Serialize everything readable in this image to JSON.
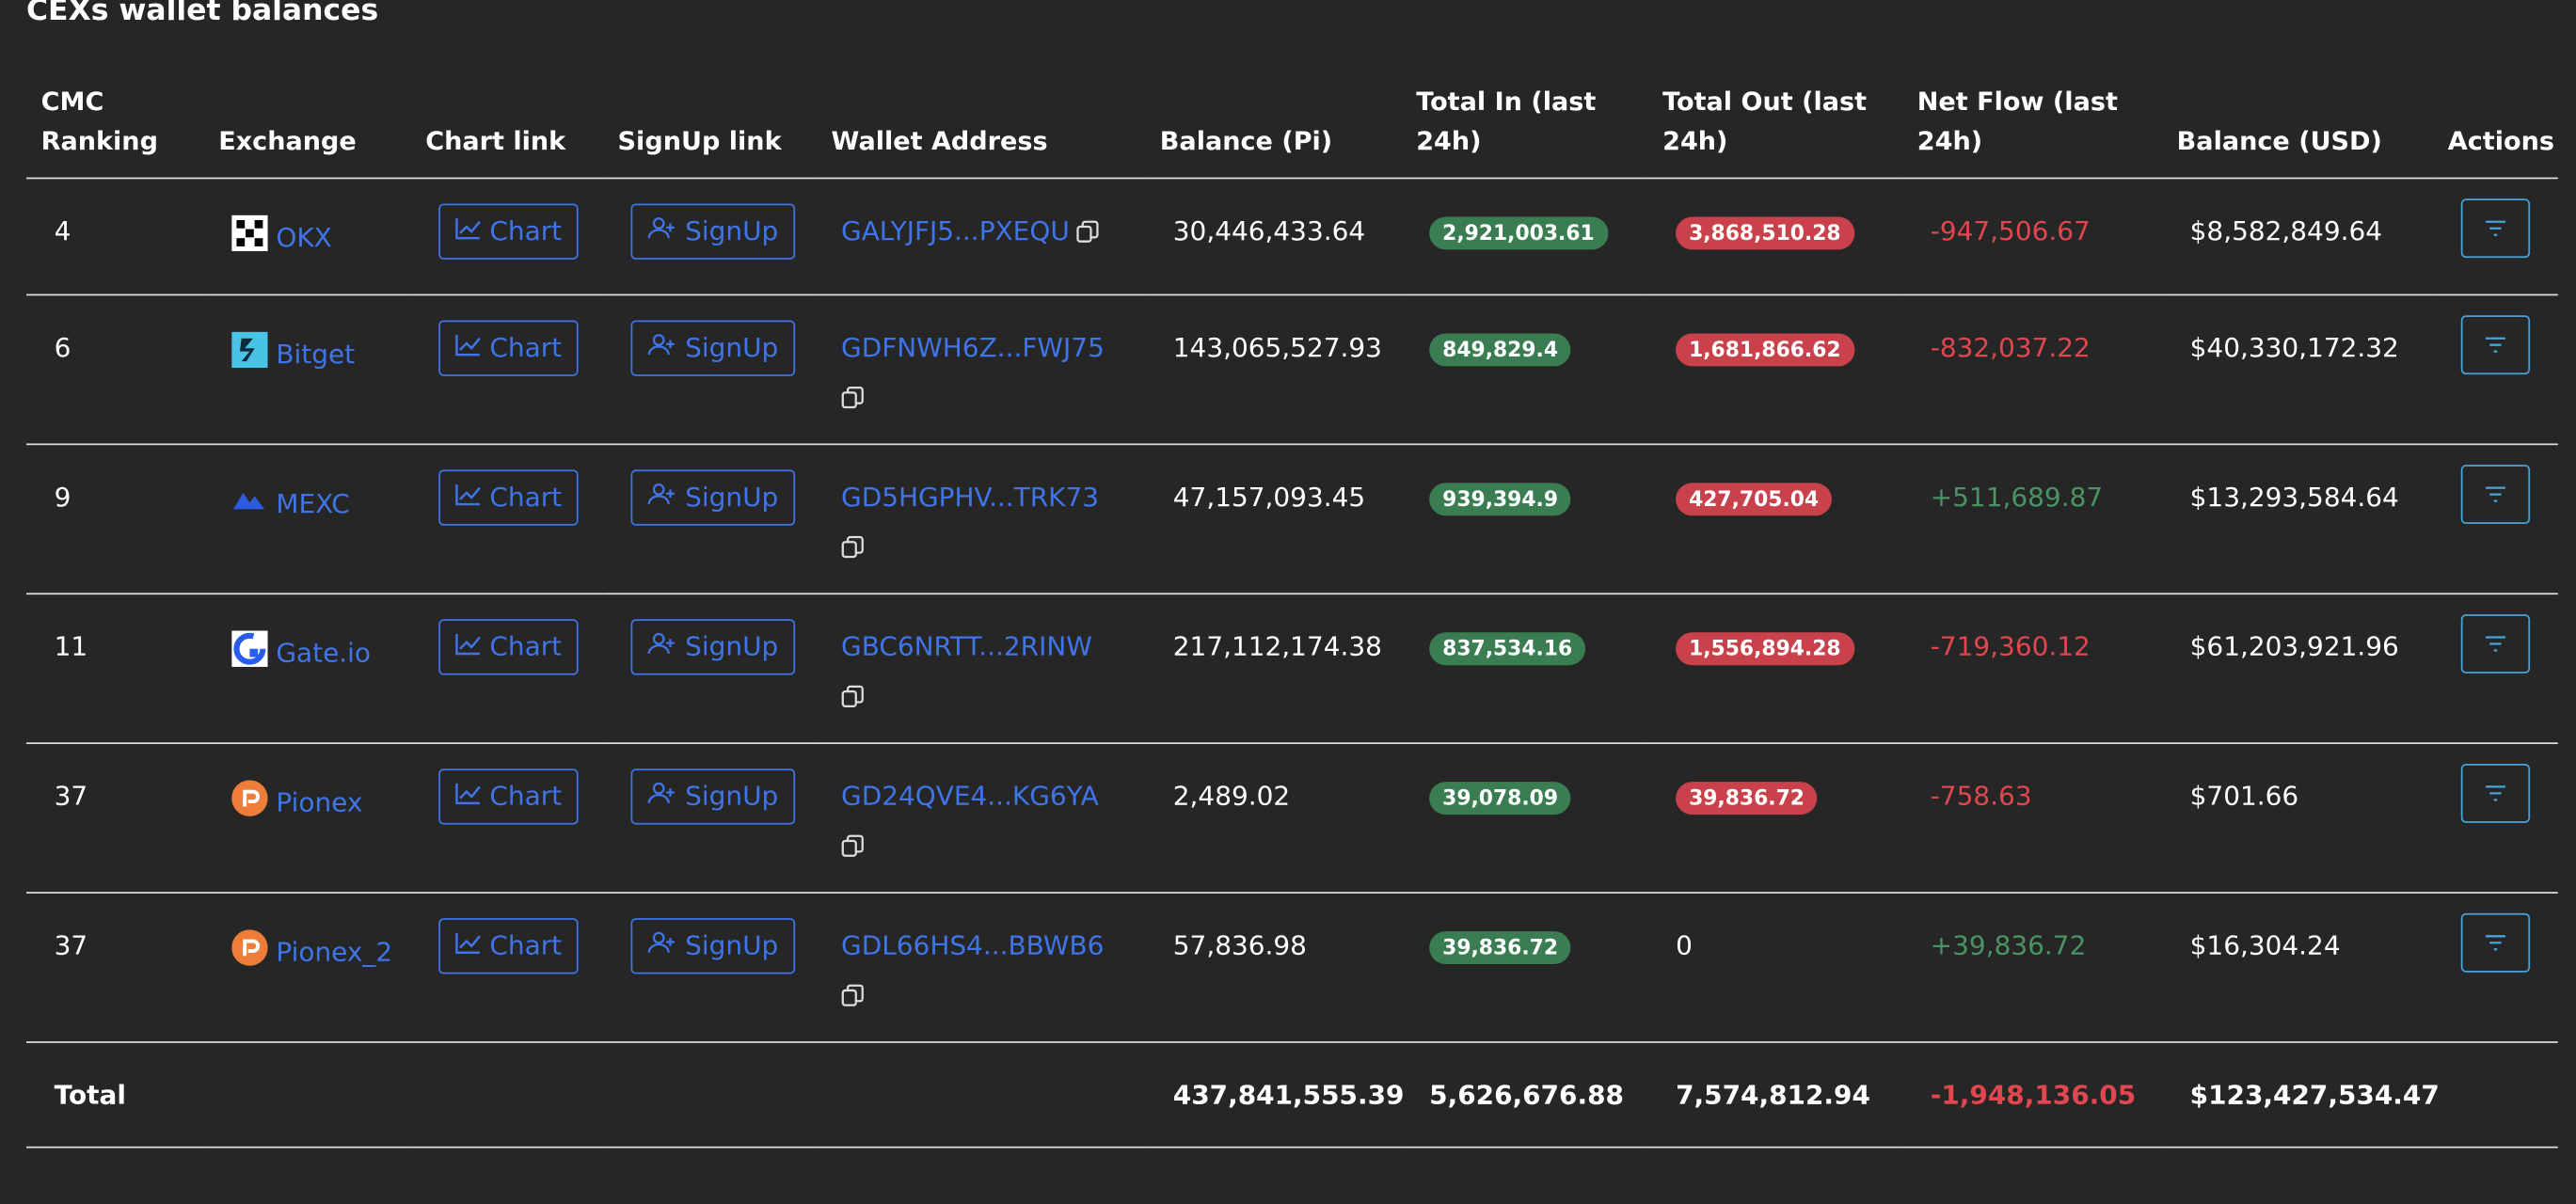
{
  "title": "CEXs wallet balances",
  "table": {
    "headers": [
      [
        "CMC",
        "Ranking"
      ],
      "Exchange",
      "Chart link",
      "SignUp link",
      "Wallet Address",
      "Balance (Pi)",
      [
        "Total In (last",
        "24h)"
      ],
      [
        "Total Out (last",
        "24h)"
      ],
      [
        "Net Flow (last",
        "24h)"
      ],
      "Balance (USD)",
      "Actions"
    ],
    "rows": [
      {
        "ranking": "4",
        "exchange": "OKX",
        "chart": "Chart",
        "signup": "SignUp",
        "address": "GALYJFJ5...PXEQU",
        "balance_pi": "30,446,433.64",
        "total_in": "2,921,003.61",
        "total_out": "3,868,510.28",
        "net_flow": "-947,506.67",
        "balance_usd": "$8,582,849.64"
      },
      {
        "ranking": "6",
        "exchange": "Bitget",
        "chart": "Chart",
        "signup": "SignUp",
        "address": "GDFNWH6Z...FWJ75",
        "balance_pi": "143,065,527.93",
        "total_in": "849,829.4",
        "total_out": "1,681,866.62",
        "net_flow": "-832,037.22",
        "balance_usd": "$40,330,172.32"
      },
      {
        "ranking": "9",
        "exchange": "MEXC",
        "chart": "Chart",
        "signup": "SignUp",
        "address": "GD5HGPHV...TRK73",
        "balance_pi": "47,157,093.45",
        "total_in": "939,394.9",
        "total_out": "427,705.04",
        "net_flow": "+511,689.87",
        "balance_usd": "$13,293,584.64"
      },
      {
        "ranking": "11",
        "exchange": "Gate.io",
        "chart": "Chart",
        "signup": "SignUp",
        "address": "GBC6NRTT...2RINW",
        "balance_pi": "217,112,174.38",
        "total_in": "837,534.16",
        "total_out": "1,556,894.28",
        "net_flow": "-719,360.12",
        "balance_usd": "$61,203,921.96"
      },
      {
        "ranking": "37",
        "exchange": "Pionex",
        "chart": "Chart",
        "signup": "SignUp",
        "address": "GD24QVE4...KG6YA",
        "balance_pi": "2,489.02",
        "total_in": "39,078.09",
        "total_out": "39,836.72",
        "net_flow": "-758.63",
        "balance_usd": "$701.66"
      },
      {
        "ranking": "37",
        "exchange": "Pionex_2",
        "chart": "Chart",
        "signup": "SignUp",
        "address": "GDL66HS4...BBWB6",
        "balance_pi": "57,836.98",
        "total_in": "39,836.72",
        "total_out": "0",
        "net_flow": "+39,836.72",
        "balance_usd": "$16,304.24"
      }
    ],
    "total": {
      "label": "Total",
      "balance_pi": "437,841,555.39",
      "total_in": "5,626,676.88",
      "total_out": "7,574,812.94",
      "net_flow": "-1,948,136.05",
      "balance_usd": "$123,427,534.47"
    }
  }
}
